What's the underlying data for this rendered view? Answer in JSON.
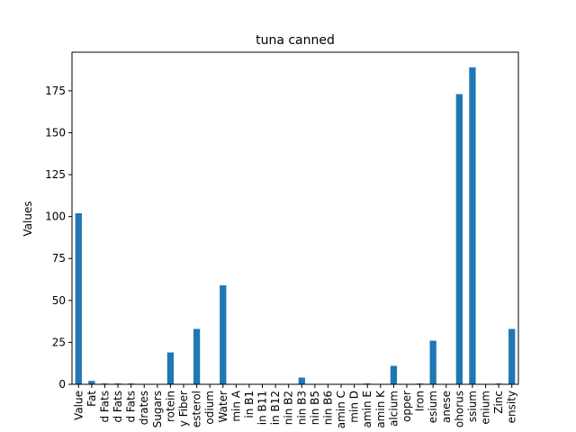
{
  "chart_data": {
    "type": "bar",
    "title": "tuna canned",
    "xlabel": "",
    "ylabel": "Values",
    "ylim": [
      0,
      198
    ],
    "yticks": [
      0,
      25,
      50,
      75,
      100,
      125,
      150,
      175
    ],
    "grid": false,
    "legend": "none",
    "bar_color": "#1f77b4",
    "categories": [
      "Value",
      "Fat",
      "d Fats",
      "d Fats",
      "d Fats",
      "drates",
      "Sugars",
      "rotein",
      "y Fiber",
      "esterol",
      "odium",
      "Water",
      "min A",
      "in B1",
      "in B11",
      "in B12",
      "nin B2",
      "nin B3",
      "nin B5",
      "nin B6",
      "amin C",
      "min D",
      "amin E",
      "amin K",
      "alcium",
      "opper",
      "Iron",
      "esium",
      "anese",
      "ohorus",
      "ssium",
      "enium",
      "Zinc",
      "ensity"
    ],
    "values": [
      102,
      2,
      0.5,
      0.5,
      0.5,
      0,
      0,
      19,
      0,
      33,
      0,
      59,
      0,
      0,
      0,
      0,
      0,
      4,
      0,
      0,
      0,
      0,
      0.5,
      0,
      11,
      0,
      0.5,
      26,
      0,
      173,
      189,
      0,
      0.5,
      33
    ]
  }
}
